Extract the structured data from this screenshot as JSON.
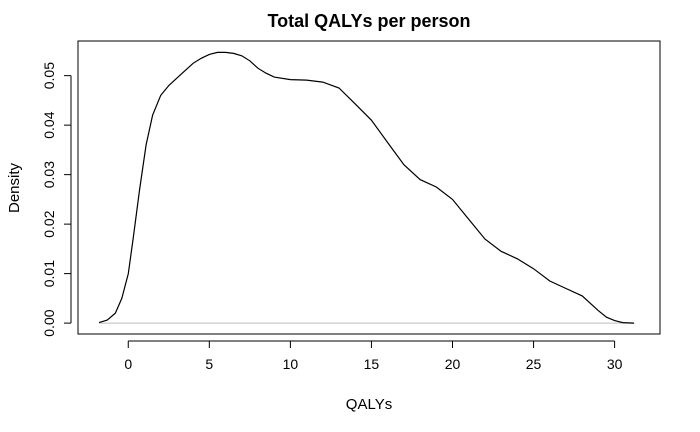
{
  "chart_data": {
    "type": "line",
    "title": "Total QALYs per person",
    "xlabel": "QALYs",
    "ylabel": "Density",
    "xlim": [
      -3.1,
      32.8
    ],
    "ylim": [
      -0.0022,
      0.057
    ],
    "x_ticks": [
      0,
      5,
      10,
      15,
      20,
      25,
      30
    ],
    "x_tick_labels": [
      "0",
      "5",
      "10",
      "15",
      "20",
      "25",
      "30"
    ],
    "y_ticks": [
      0.0,
      0.01,
      0.02,
      0.03,
      0.04,
      0.05
    ],
    "y_tick_labels": [
      "0.00",
      "0.01",
      "0.02",
      "0.03",
      "0.04",
      "0.05"
    ],
    "baseline": 0,
    "grid": false,
    "legend": "none",
    "colors": {
      "line": "#000000",
      "baseline": "#bebebe",
      "frame": "#000000"
    },
    "series": [
      {
        "x": [
          -1.8,
          -1.3,
          -0.8,
          -0.4,
          0.0,
          0.3,
          0.7,
          1.1,
          1.5,
          2.0,
          2.5,
          3.0,
          3.5,
          4.0,
          4.5,
          5.0,
          5.5,
          6.0,
          6.5,
          7.0,
          7.5,
          8.0,
          8.5,
          9.0,
          10.0,
          11.0,
          12.0,
          13.0,
          14.0,
          15.0,
          16.0,
          17.0,
          18.0,
          19.0,
          20.0,
          21.0,
          22.0,
          23.0,
          24.0,
          25.0,
          26.0,
          27.0,
          28.0,
          28.5,
          29.0,
          29.5,
          30.0,
          30.5,
          31.2
        ],
        "y": [
          0.0001,
          0.0006,
          0.002,
          0.005,
          0.01,
          0.017,
          0.027,
          0.036,
          0.042,
          0.046,
          0.048,
          0.0495,
          0.051,
          0.0525,
          0.0535,
          0.0543,
          0.0547,
          0.0547,
          0.0545,
          0.054,
          0.053,
          0.0515,
          0.0505,
          0.0497,
          0.0492,
          0.0491,
          0.0487,
          0.0475,
          0.0443,
          0.041,
          0.0365,
          0.032,
          0.029,
          0.0275,
          0.025,
          0.021,
          0.017,
          0.0145,
          0.013,
          0.011,
          0.0085,
          0.007,
          0.0055,
          0.004,
          0.0025,
          0.0012,
          0.0005,
          0.0001,
          0.0
        ]
      }
    ]
  }
}
